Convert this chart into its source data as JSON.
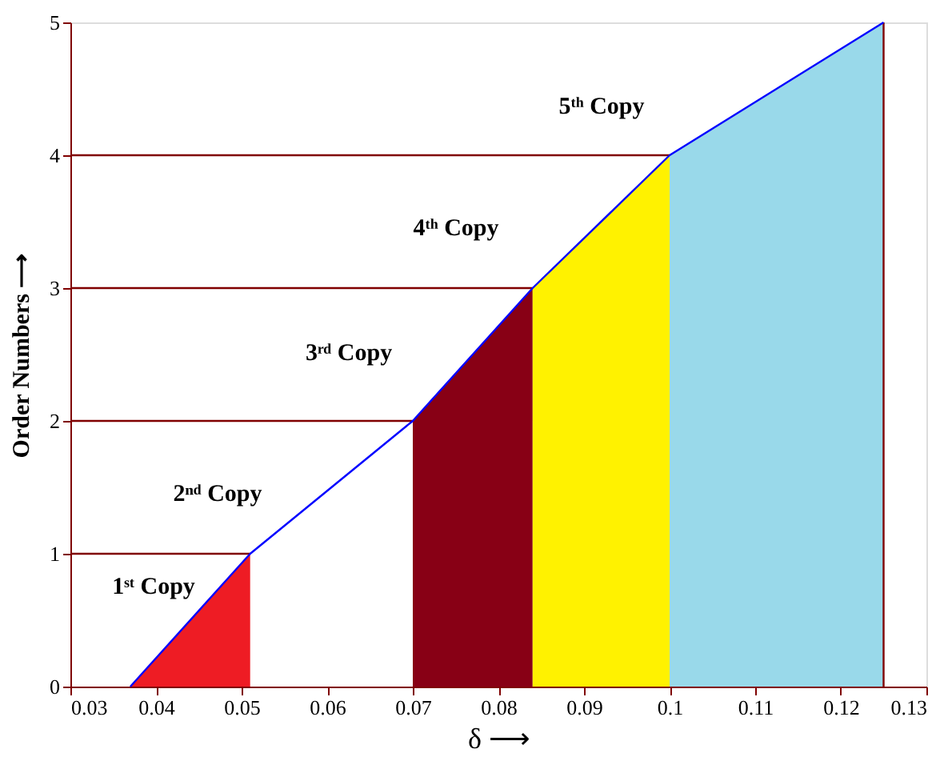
{
  "chart_data": {
    "type": "line",
    "xlabel": "δ ⟶",
    "ylabel": "Order Numbers ⟶",
    "xlim": [
      0.03,
      0.13
    ],
    "xticks": [
      0.03,
      0.04,
      0.05,
      0.06,
      0.07,
      0.08,
      0.09,
      0.1,
      0.11,
      0.12,
      0.13
    ],
    "ylim": [
      0,
      5
    ],
    "yticks": [
      0,
      1,
      2,
      3,
      4,
      5
    ],
    "grid": false,
    "series": [
      {
        "type": "area",
        "color": "#ee1c24",
        "x": [
          0.037,
          0.051
        ],
        "values": [
          0,
          1
        ]
      },
      {
        "type": "area",
        "color": "#880015",
        "x": [
          0.07,
          0.084
        ],
        "values": [
          2,
          3
        ]
      },
      {
        "type": "area",
        "color": "#fff200",
        "x": [
          0.084,
          0.1
        ],
        "values": [
          3,
          4
        ]
      },
      {
        "type": "area",
        "color": "#99d9ea",
        "x": [
          0.1,
          0.125
        ],
        "values": [
          4,
          5
        ]
      },
      {
        "color": "#800000",
        "x": [
          0.03,
          0.051
        ],
        "values": [
          1,
          1
        ]
      },
      {
        "color": "#800000",
        "x": [
          0.03,
          0.07
        ],
        "values": [
          2,
          2
        ]
      },
      {
        "color": "#800000",
        "x": [
          0.03,
          0.084
        ],
        "values": [
          3,
          3
        ]
      },
      {
        "color": "#800000",
        "x": [
          0.03,
          0.1
        ],
        "values": [
          4,
          4
        ]
      },
      {
        "color": "#800000",
        "x": [
          0.125,
          0.125
        ],
        "values": [
          0,
          5
        ]
      },
      {
        "color": "#0000ff",
        "x": [
          0.037,
          0.051,
          0.07,
          0.084,
          0.1,
          0.125
        ],
        "values": [
          0,
          1,
          2,
          3,
          4,
          5
        ]
      }
    ],
    "annotations": [
      "1ˢᵗ Copy",
      "2ⁿᵈ Copy",
      "3ʳᵈ Copy",
      "4ᵗʰ Copy",
      "5ᵗʰ Copy"
    ]
  }
}
